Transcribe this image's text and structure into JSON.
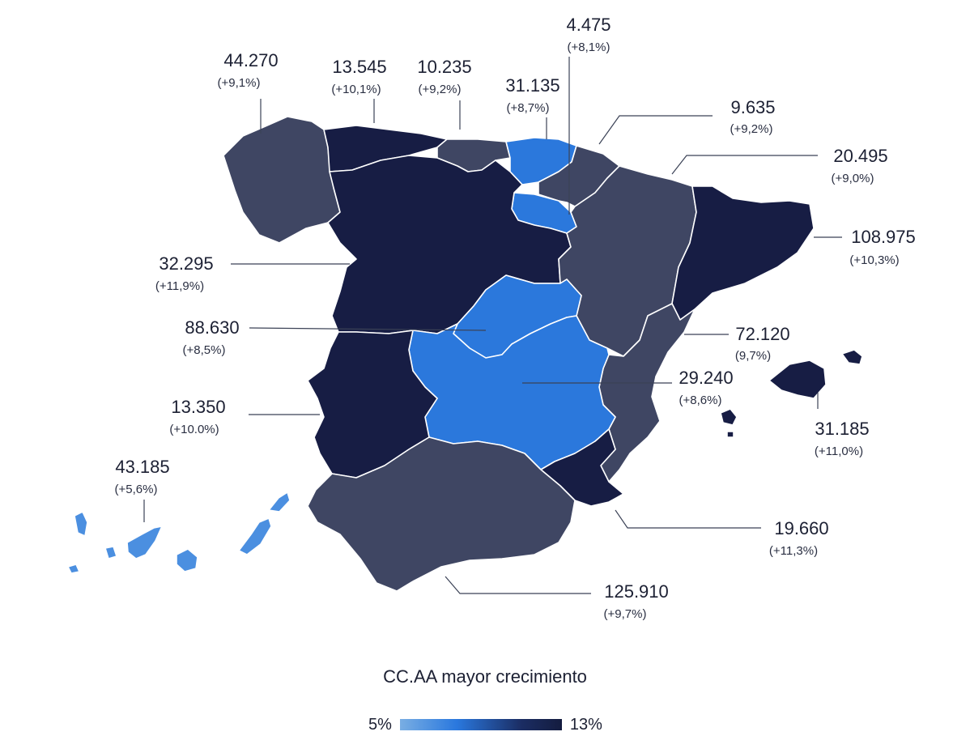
{
  "colors": {
    "dark": "#171d44",
    "slate": "#3f4663",
    "blue": "#2b78dc",
    "light_blue": "#4b8fe0"
  },
  "regions": [
    {
      "id": "galicia",
      "value": "44.270",
      "change": "(+9,1%)",
      "color": "slate"
    },
    {
      "id": "asturias",
      "value": "13.545",
      "change": "(+10,1%)",
      "color": "dark"
    },
    {
      "id": "cantabria",
      "value": "10.235",
      "change": "(+9,2%)",
      "color": "slate"
    },
    {
      "id": "pais-vasco",
      "value": "31.135",
      "change": "(+8,7%)",
      "color": "blue"
    },
    {
      "id": "la-rioja",
      "value": "4.475",
      "change": "(+8,1%)",
      "color": "blue"
    },
    {
      "id": "navarra",
      "value": "9.635",
      "change": "(+9,2%)",
      "color": "slate"
    },
    {
      "id": "aragon",
      "value": "20.495",
      "change": "(+9,0%)",
      "color": "slate"
    },
    {
      "id": "cataluna",
      "value": "108.975",
      "change": "(+10,3%)",
      "color": "dark"
    },
    {
      "id": "castilla-leon",
      "value": "32.295",
      "change": "(+11,9%)",
      "color": "dark"
    },
    {
      "id": "madrid",
      "value": "88.630",
      "change": "(+8,5%)",
      "color": "blue"
    },
    {
      "id": "valencia",
      "value": "72.120",
      "change": "(9,7%)",
      "color": "slate"
    },
    {
      "id": "castilla-la-mancha",
      "value": "29.240",
      "change": "(+8,6%)",
      "color": "blue"
    },
    {
      "id": "extremadura",
      "value": "13.350",
      "change": "(+10.0%)",
      "color": "dark"
    },
    {
      "id": "baleares",
      "value": "31.185",
      "change": "(+11,0%)",
      "color": "dark"
    },
    {
      "id": "canarias",
      "value": "43.185",
      "change": "(+5,6%)",
      "color": "light_blue"
    },
    {
      "id": "murcia",
      "value": "19.660",
      "change": "(+11,3%)",
      "color": "dark"
    },
    {
      "id": "andalucia",
      "value": "125.910",
      "change": "(+9,7%)",
      "color": "slate"
    }
  ],
  "legend": {
    "title": "CC.AA mayor crecimiento",
    "min": "5%",
    "max": "13%"
  }
}
